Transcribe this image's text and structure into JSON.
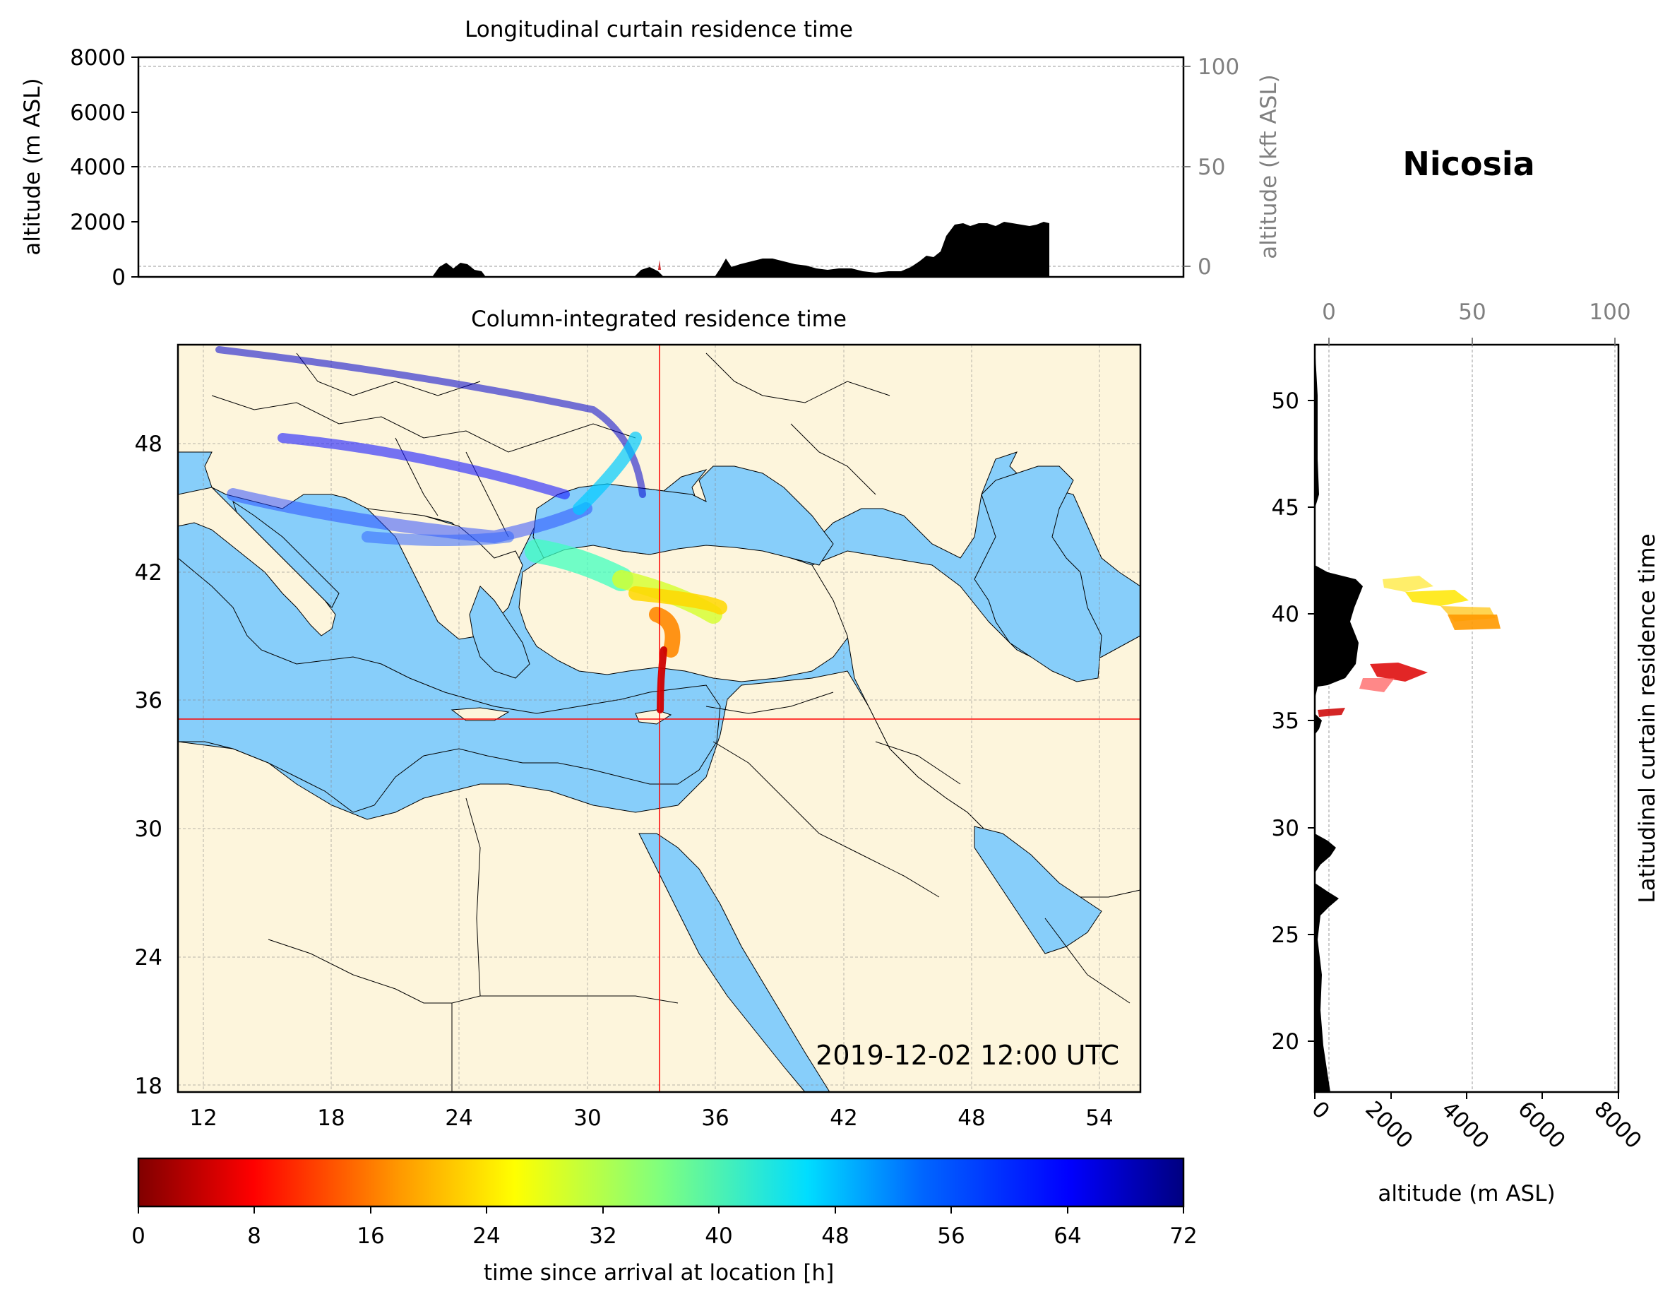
{
  "location": "Nicosia",
  "timestamp": "2019-12-02 12:00 UTC",
  "colors": {
    "land": "#fdf5dc",
    "water": "#87cefa",
    "border": "#000000",
    "terrain": "#000000",
    "crosshair": "#ff0000",
    "secondary_axis": "#808080"
  },
  "longitudinal_panel": {
    "title": "Longitudinal curtain residence time",
    "ylabel": "altitude (m ASL)",
    "y_ticks": [
      "0",
      "2000",
      "4000",
      "6000",
      "8000"
    ],
    "y2label": "altitude (kft ASL)",
    "y2_ticks": [
      "0",
      "50",
      "100"
    ]
  },
  "map_panel": {
    "title": "Column-integrated residence time",
    "lon_ticks": [
      "12",
      "18",
      "24",
      "30",
      "36",
      "42",
      "48",
      "54"
    ],
    "lat_ticks": [
      "18",
      "24",
      "30",
      "36",
      "42",
      "48"
    ],
    "crosshair": {
      "lon": 33.4,
      "lat": 35.2
    },
    "extent": {
      "lon": [
        11,
        56
      ],
      "lat": [
        18,
        53
      ]
    }
  },
  "latitudinal_panel": {
    "title": "Latitudinal curtain residence time",
    "xlabel": "altitude (m ASL)",
    "x_ticks": [
      "0",
      "2000",
      "4000",
      "6000",
      "8000"
    ],
    "x2_ticks": [
      "0",
      "50",
      "100"
    ],
    "lat_ticks": [
      "20",
      "25",
      "30",
      "35",
      "40",
      "45",
      "50"
    ]
  },
  "colorbar": {
    "label": "time since arrival at location [h]",
    "ticks": [
      "0",
      "8",
      "16",
      "24",
      "32",
      "40",
      "48",
      "56",
      "64",
      "72"
    ],
    "range": [
      0,
      72
    ],
    "colormap": "jet_r"
  }
}
